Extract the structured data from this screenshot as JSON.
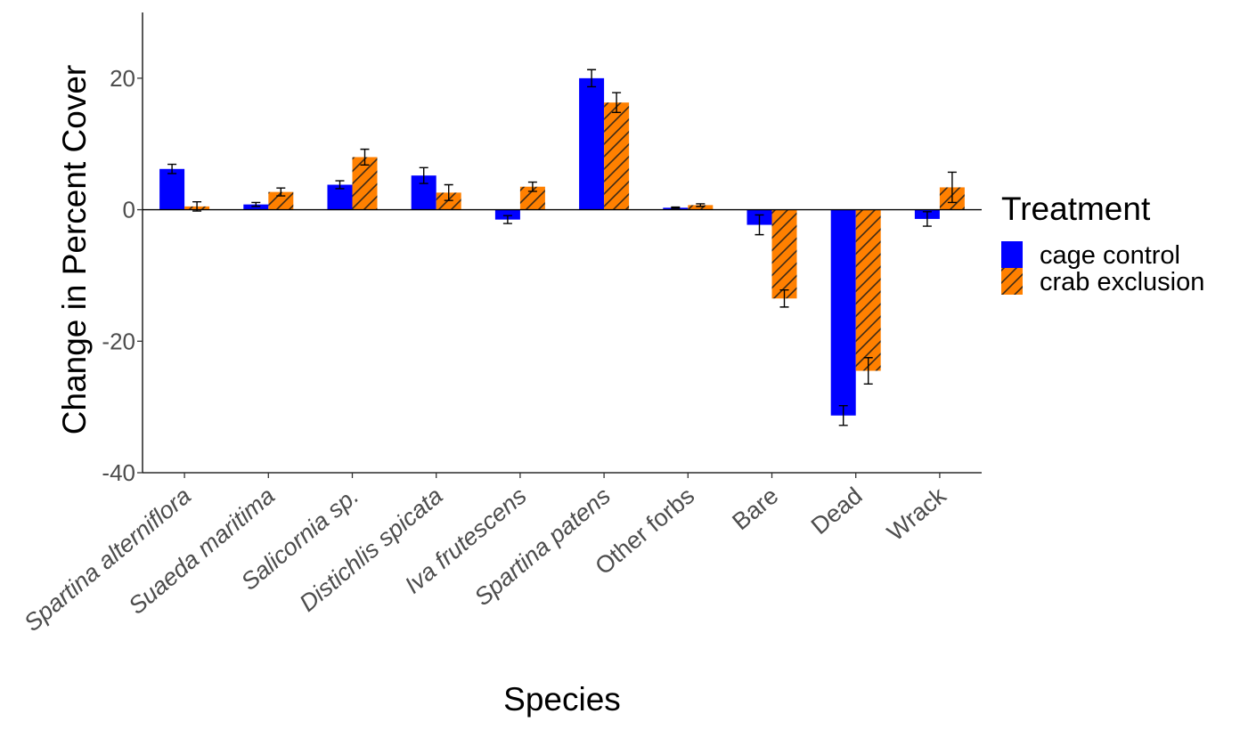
{
  "chart_data": {
    "type": "bar",
    "xlabel": "Species",
    "ylabel": "Change in Percent Cover",
    "ylim": [
      -40,
      30
    ],
    "yticks": [
      -40,
      -20,
      0,
      20
    ],
    "ytick_labels": [
      "-40",
      "-20",
      "0",
      "20"
    ],
    "grid": false,
    "categories": [
      "Spartina alterniflora",
      "Suaeda maritima",
      "Salicornia sp.",
      "Distichlis spicata",
      "Iva frutescens",
      "Spartina patens",
      "Other forbs",
      "Bare",
      "Dead",
      "Wrack"
    ],
    "italic_categories": [
      true,
      true,
      true,
      true,
      true,
      true,
      false,
      false,
      false,
      false
    ],
    "legend": {
      "title": "Treatment",
      "position": "right"
    },
    "series": [
      {
        "name": "cage control",
        "color": "#0000ff",
        "pattern": "solid",
        "values": [
          6.2,
          0.8,
          3.8,
          5.2,
          -1.5,
          20.0,
          0.3,
          -2.3,
          -31.3,
          -1.4
        ],
        "errors": [
          0.7,
          0.3,
          0.6,
          1.2,
          0.6,
          1.3,
          0.1,
          1.5,
          1.5,
          1.1
        ]
      },
      {
        "name": "crab exclusion",
        "color": "#ff8000",
        "pattern": "stripe",
        "values": [
          0.5,
          2.7,
          8.0,
          2.6,
          3.5,
          16.3,
          0.7,
          -13.5,
          -24.5,
          3.4
        ],
        "errors": [
          0.7,
          0.6,
          1.2,
          1.2,
          0.7,
          1.5,
          0.2,
          1.3,
          2.0,
          2.3
        ]
      }
    ]
  }
}
